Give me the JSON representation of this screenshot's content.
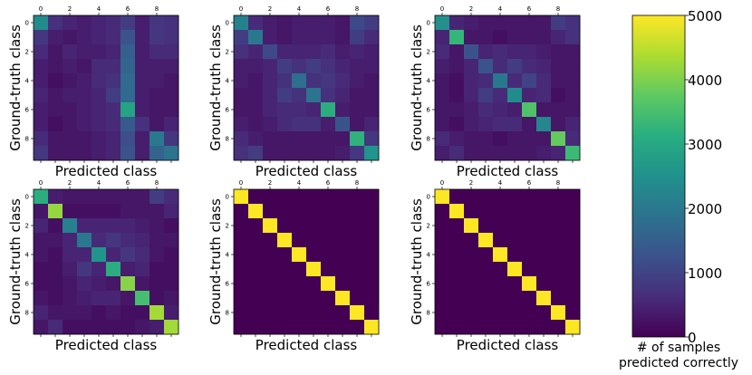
{
  "chart_data": [
    {
      "type": "heatmap",
      "xlabel": "Predicted class",
      "ylabel": "Ground-truth class",
      "x_ticks": [
        "0",
        "2",
        "4",
        "6",
        "8"
      ],
      "y_ticks": [
        "0",
        "2",
        "4",
        "6",
        "8"
      ],
      "matrix": [
        [
          2400,
          700,
          500,
          400,
          500,
          600,
          900,
          400,
          800,
          700
        ],
        [
          800,
          400,
          300,
          400,
          500,
          600,
          1300,
          400,
          800,
          700
        ],
        [
          600,
          300,
          500,
          400,
          400,
          500,
          1500,
          400,
          600,
          600
        ],
        [
          400,
          300,
          400,
          300,
          600,
          600,
          1600,
          400,
          400,
          400
        ],
        [
          400,
          200,
          300,
          400,
          600,
          700,
          1700,
          400,
          400,
          300
        ],
        [
          500,
          300,
          400,
          400,
          500,
          900,
          1700,
          400,
          300,
          300
        ],
        [
          400,
          300,
          300,
          400,
          500,
          600,
          2900,
          400,
          300,
          300
        ],
        [
          400,
          200,
          300,
          400,
          500,
          600,
          1400,
          700,
          300,
          500
        ],
        [
          600,
          300,
          300,
          300,
          400,
          500,
          1200,
          400,
          2000,
          800
        ],
        [
          800,
          300,
          300,
          300,
          400,
          500,
          1300,
          400,
          1600,
          1900
        ]
      ]
    },
    {
      "type": "heatmap",
      "xlabel": "Predicted class",
      "ylabel": "Ground-truth class",
      "x_ticks": [
        "0",
        "2",
        "4",
        "6",
        "8"
      ],
      "y_ticks": [
        "0",
        "2",
        "4",
        "6",
        "8"
      ],
      "matrix": [
        [
          2200,
          600,
          400,
          300,
          400,
          400,
          400,
          300,
          1100,
          900
        ],
        [
          900,
          2000,
          400,
          300,
          400,
          400,
          400,
          300,
          900,
          600
        ],
        [
          700,
          500,
          1100,
          500,
          500,
          500,
          600,
          400,
          500,
          400
        ],
        [
          400,
          400,
          500,
          900,
          700,
          900,
          700,
          500,
          400,
          400
        ],
        [
          400,
          300,
          500,
          700,
          1800,
          700,
          800,
          600,
          400,
          300
        ],
        [
          300,
          300,
          500,
          900,
          700,
          1900,
          700,
          500,
          300,
          300
        ],
        [
          300,
          300,
          500,
          600,
          600,
          500,
          3100,
          400,
          300,
          300
        ],
        [
          400,
          300,
          400,
          600,
          700,
          700,
          400,
          1300,
          300,
          500
        ],
        [
          600,
          400,
          300,
          300,
          300,
          300,
          300,
          300,
          3200,
          800
        ],
        [
          700,
          900,
          300,
          300,
          300,
          300,
          300,
          400,
          800,
          2600
        ]
      ]
    },
    {
      "type": "heatmap",
      "xlabel": "Predicted class",
      "ylabel": "Ground-truth class",
      "x_ticks": [
        "0",
        "2",
        "4",
        "6",
        "8"
      ],
      "y_ticks": [
        "0",
        "2",
        "4",
        "6",
        "8"
      ],
      "matrix": [
        [
          2500,
          500,
          400,
          300,
          300,
          300,
          300,
          300,
          900,
          700
        ],
        [
          500,
          3300,
          300,
          300,
          200,
          300,
          300,
          300,
          500,
          700
        ],
        [
          600,
          300,
          1300,
          500,
          600,
          500,
          500,
          400,
          300,
          300
        ],
        [
          400,
          300,
          500,
          1300,
          600,
          900,
          600,
          500,
          300,
          300
        ],
        [
          300,
          200,
          500,
          600,
          2000,
          600,
          1000,
          600,
          300,
          300
        ],
        [
          300,
          200,
          500,
          900,
          600,
          2400,
          500,
          600,
          200,
          300
        ],
        [
          300,
          300,
          400,
          600,
          500,
          400,
          3600,
          300,
          300,
          300
        ],
        [
          300,
          200,
          400,
          500,
          600,
          600,
          300,
          2300,
          300,
          500
        ],
        [
          600,
          400,
          300,
          300,
          200,
          300,
          300,
          300,
          3800,
          600
        ],
        [
          400,
          600,
          300,
          300,
          300,
          300,
          300,
          400,
          500,
          3400
        ]
      ]
    },
    {
      "type": "heatmap",
      "xlabel": "Predicted class",
      "ylabel": "Ground-truth class",
      "x_ticks": [
        "0",
        "2",
        "4",
        "6",
        "8"
      ],
      "y_ticks": [
        "0",
        "2",
        "4",
        "6",
        "8"
      ],
      "matrix": [
        [
          3100,
          400,
          300,
          300,
          300,
          300,
          300,
          300,
          900,
          600
        ],
        [
          300,
          4200,
          200,
          200,
          200,
          200,
          300,
          300,
          300,
          500
        ],
        [
          500,
          200,
          2200,
          500,
          500,
          500,
          500,
          400,
          300,
          200
        ],
        [
          300,
          300,
          500,
          2000,
          600,
          800,
          600,
          500,
          300,
          300
        ],
        [
          300,
          200,
          500,
          500,
          2600,
          500,
          800,
          600,
          300,
          200
        ],
        [
          200,
          200,
          400,
          800,
          500,
          3100,
          400,
          500,
          200,
          200
        ],
        [
          200,
          200,
          300,
          500,
          400,
          300,
          4100,
          300,
          200,
          200
        ],
        [
          300,
          200,
          300,
          400,
          500,
          500,
          300,
          3500,
          200,
          300
        ],
        [
          500,
          300,
          300,
          300,
          200,
          300,
          200,
          200,
          4300,
          400
        ],
        [
          300,
          600,
          200,
          200,
          200,
          200,
          200,
          300,
          400,
          4300
        ]
      ]
    },
    {
      "type": "heatmap",
      "xlabel": "Predicted class",
      "ylabel": "Ground-truth class",
      "x_ticks": [
        "0",
        "2",
        "4",
        "6",
        "8"
      ],
      "y_ticks": [
        "0",
        "2",
        "4",
        "6",
        "8"
      ],
      "matrix": [
        [
          5000,
          0,
          0,
          0,
          0,
          0,
          0,
          0,
          0,
          0
        ],
        [
          0,
          5000,
          0,
          0,
          0,
          0,
          0,
          0,
          0,
          0
        ],
        [
          0,
          0,
          5000,
          0,
          0,
          0,
          0,
          0,
          0,
          0
        ],
        [
          0,
          0,
          0,
          5000,
          0,
          0,
          0,
          0,
          0,
          0
        ],
        [
          0,
          0,
          0,
          0,
          5000,
          0,
          0,
          0,
          0,
          0
        ],
        [
          0,
          0,
          0,
          0,
          0,
          5000,
          0,
          0,
          0,
          0
        ],
        [
          0,
          0,
          0,
          0,
          0,
          0,
          5000,
          0,
          0,
          0
        ],
        [
          0,
          0,
          0,
          0,
          0,
          0,
          0,
          5000,
          0,
          0
        ],
        [
          0,
          0,
          0,
          0,
          0,
          0,
          0,
          0,
          5000,
          0
        ],
        [
          0,
          0,
          0,
          0,
          0,
          0,
          0,
          0,
          0,
          5000
        ]
      ]
    },
    {
      "type": "heatmap",
      "xlabel": "Predicted class",
      "ylabel": "Ground-truth class",
      "x_ticks": [
        "0",
        "2",
        "4",
        "6",
        "8"
      ],
      "y_ticks": [
        "0",
        "2",
        "4",
        "6",
        "8"
      ],
      "matrix": [
        [
          5000,
          0,
          0,
          0,
          0,
          0,
          0,
          0,
          0,
          0
        ],
        [
          0,
          5000,
          0,
          0,
          0,
          0,
          0,
          0,
          0,
          0
        ],
        [
          0,
          0,
          5000,
          0,
          0,
          0,
          0,
          0,
          0,
          0
        ],
        [
          0,
          0,
          0,
          5000,
          0,
          0,
          0,
          0,
          0,
          0
        ],
        [
          0,
          0,
          0,
          0,
          5000,
          0,
          0,
          0,
          0,
          0
        ],
        [
          0,
          0,
          0,
          0,
          0,
          5000,
          0,
          0,
          0,
          0
        ],
        [
          0,
          0,
          0,
          0,
          0,
          0,
          5000,
          0,
          0,
          0
        ],
        [
          0,
          0,
          0,
          0,
          0,
          0,
          0,
          5000,
          0,
          0
        ],
        [
          0,
          0,
          0,
          0,
          0,
          0,
          0,
          0,
          5000,
          0
        ],
        [
          0,
          0,
          0,
          0,
          0,
          0,
          0,
          0,
          0,
          5000
        ]
      ]
    }
  ],
  "colorbar": {
    "colormap": "viridis",
    "range": [
      0,
      5000
    ],
    "ticks": [
      "0",
      "1000",
      "2000",
      "3000",
      "4000",
      "5000"
    ],
    "label_line1": "# of samples",
    "label_line2": "predicted correctly"
  }
}
